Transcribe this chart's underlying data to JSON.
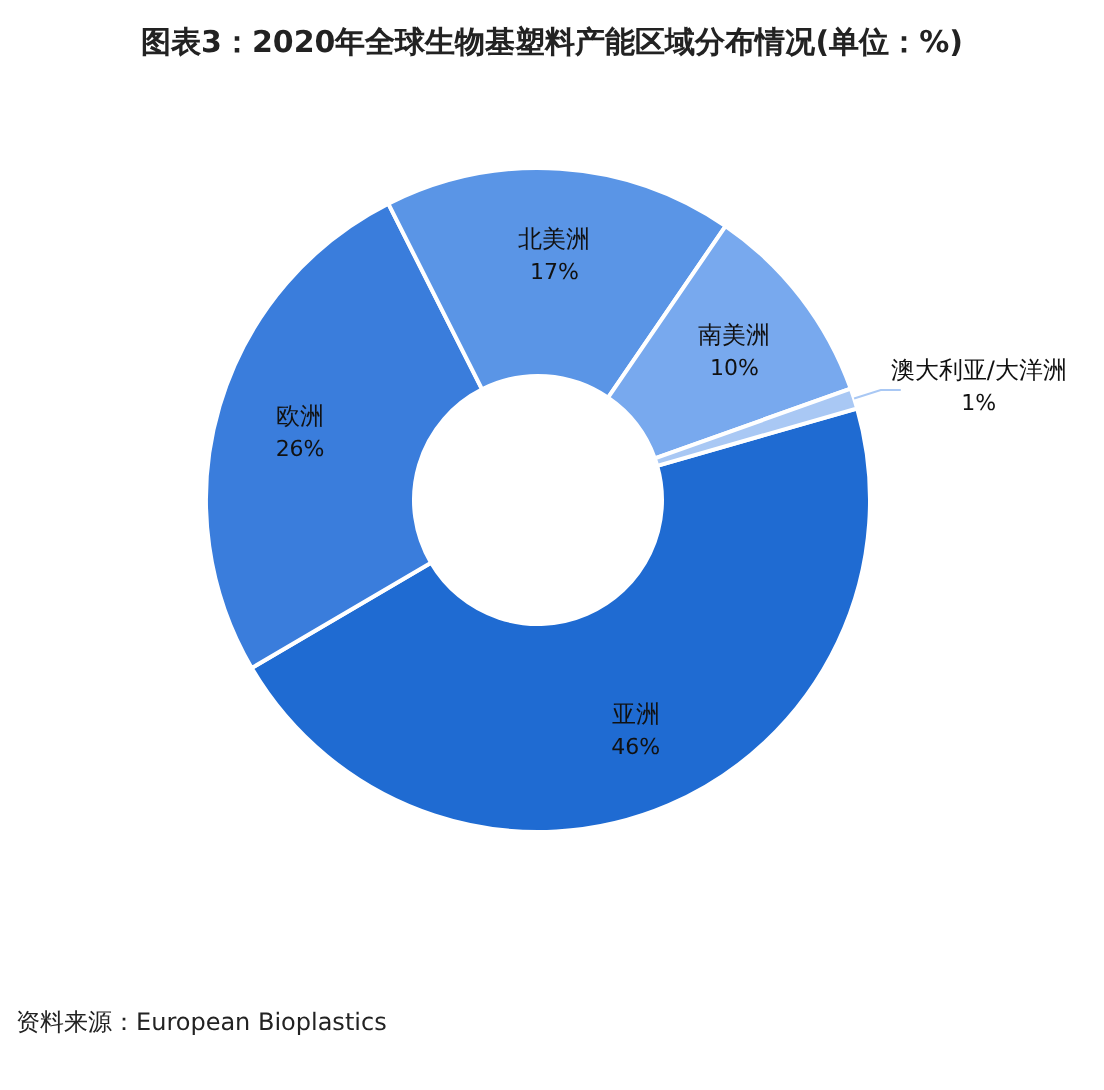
{
  "chart_data": {
    "type": "donut",
    "title": "图表3：2020年全球生物基塑料产能区域分布情况(单位：%)",
    "categories": [
      "亚洲",
      "欧洲",
      "北美洲",
      "南美洲",
      "澳大利亚/大洋洲"
    ],
    "values": [
      46,
      26,
      17,
      10,
      1
    ],
    "colors": [
      "#1f6bd2",
      "#3a7ddc",
      "#5a95e6",
      "#78a9ee",
      "#a9c8f4"
    ],
    "value_labels": [
      "46%",
      "26%",
      "17%",
      "10%",
      "1%"
    ],
    "annotations": [
      "资料来源：European Bioplastics"
    ]
  }
}
